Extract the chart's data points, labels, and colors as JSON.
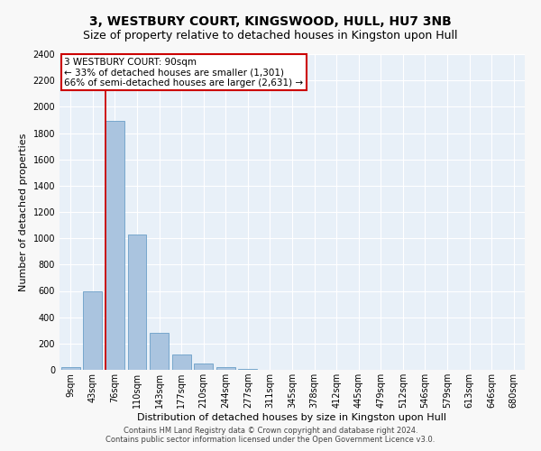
{
  "title": "3, WESTBURY COURT, KINGSWOOD, HULL, HU7 3NB",
  "subtitle": "Size of property relative to detached houses in Kingston upon Hull",
  "xlabel": "Distribution of detached houses by size in Kingston upon Hull",
  "ylabel": "Number of detached properties",
  "footer_line1": "Contains HM Land Registry data © Crown copyright and database right 2024.",
  "footer_line2": "Contains public sector information licensed under the Open Government Licence v3.0.",
  "bar_labels": [
    "9sqm",
    "43sqm",
    "76sqm",
    "110sqm",
    "143sqm",
    "177sqm",
    "210sqm",
    "244sqm",
    "277sqm",
    "311sqm",
    "345sqm",
    "378sqm",
    "412sqm",
    "445sqm",
    "479sqm",
    "512sqm",
    "546sqm",
    "579sqm",
    "613sqm",
    "646sqm",
    "680sqm"
  ],
  "bar_values": [
    20,
    600,
    1890,
    1030,
    280,
    120,
    45,
    20,
    8,
    3,
    1,
    0,
    0,
    0,
    0,
    0,
    0,
    0,
    0,
    0,
    0
  ],
  "bar_color": "#aac4df",
  "bar_edge_color": "#6a9fc8",
  "annotation_text": "3 WESTBURY COURT: 90sqm\n← 33% of detached houses are smaller (1,301)\n66% of semi-detached houses are larger (2,631) →",
  "annotation_box_color": "#ffffff",
  "annotation_box_edge_color": "#cc0000",
  "vline_color": "#cc0000",
  "vline_x_index": 2,
  "ylim": [
    0,
    2400
  ],
  "yticks": [
    0,
    200,
    400,
    600,
    800,
    1000,
    1200,
    1400,
    1600,
    1800,
    2000,
    2200,
    2400
  ],
  "bg_color": "#e8f0f8",
  "grid_color": "#ffffff",
  "title_fontsize": 10,
  "subtitle_fontsize": 9,
  "axis_label_fontsize": 8,
  "tick_fontsize": 7,
  "footer_fontsize": 6,
  "annotation_fontsize": 7.5
}
